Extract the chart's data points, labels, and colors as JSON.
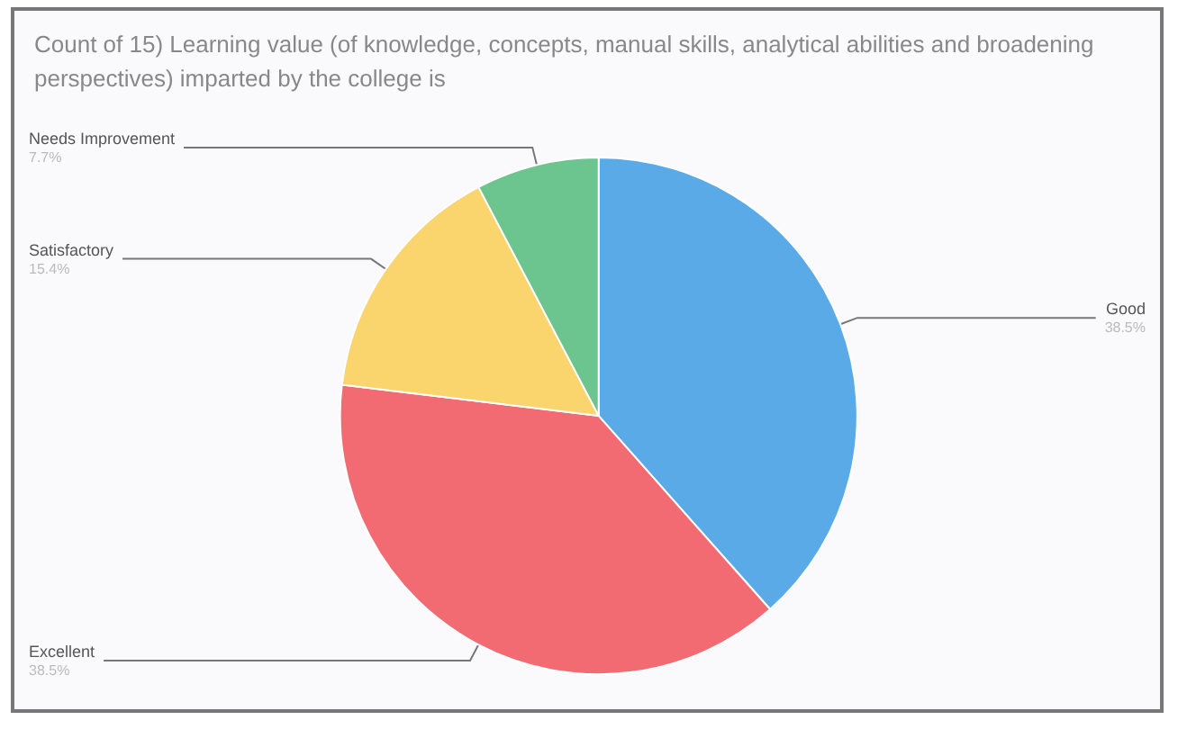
{
  "chart_data": {
    "type": "pie",
    "title": "Count of 15) Learning value (of knowledge, concepts, manual skills, analytical abilities and broadening perspectives) imparted by the college is",
    "categories": [
      "Good",
      "Excellent",
      "Satisfactory",
      "Needs Improvement"
    ],
    "values": [
      38.5,
      38.5,
      15.4,
      7.7
    ],
    "value_labels": [
      "38.5%",
      "38.5%",
      "15.4%",
      "7.7%"
    ],
    "colors": [
      "#5aaae8",
      "#f26a72",
      "#fad46c",
      "#6cc48e"
    ],
    "legend": false
  }
}
